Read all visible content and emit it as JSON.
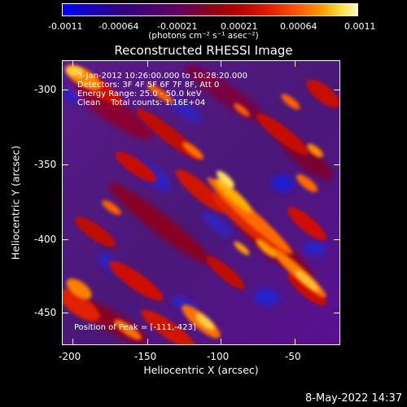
{
  "colorbar": {
    "tick_labels": [
      "-0.0011",
      "-0.00064",
      "-0.00021",
      "0.00021",
      "0.00064",
      "0.0011"
    ],
    "units": "(photons cm⁻² s⁻¹ asec⁻²)"
  },
  "title": "Reconstructed RHESSI Image",
  "overlay": {
    "time_range": "3-Jan-2012 10:26:00.000 to 10:28:20.000",
    "detectors": "Detectors: 3F 4F 5F 6F 7F 8F, Att 0",
    "energy_range": "Energy Range: 25.0 - 50.0 keV",
    "clean_counts": "Clean    Total counts: 1.16E+04",
    "peak_position": "Position of Peak = [-111,-423]"
  },
  "y_axis": {
    "label": "Heliocentric Y (arcsec)",
    "tick_labels": [
      "-300",
      "-350",
      "-400",
      "-450"
    ]
  },
  "x_axis": {
    "label": "Heliocentric X (arcsec)",
    "tick_labels": [
      "-200",
      "-150",
      "-100",
      "-50"
    ]
  },
  "footer": {
    "date": "8-May-2022 14:37"
  },
  "colors": {
    "background": "#000000",
    "text": "#ffffff",
    "colormap_low": "#0000ff",
    "colormap_mid": "#8a0018",
    "colormap_high": "#fff7c5"
  }
}
